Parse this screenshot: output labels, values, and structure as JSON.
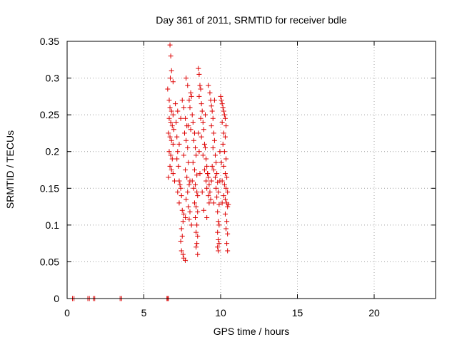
{
  "chart_data": {
    "type": "scatter",
    "title": "Day 361 of 2011, SRMTID for receiver bdle",
    "xlabel": "GPS time / hours",
    "ylabel": "SRMTID / TECUs",
    "xlim": [
      0,
      24
    ],
    "ylim": [
      0,
      0.35
    ],
    "xticks": [
      0,
      5,
      10,
      15,
      20
    ],
    "xtick_labels": [
      "0",
      "5",
      "10",
      "15",
      "20"
    ],
    "yticks": [
      0,
      0.05,
      0.1,
      0.15,
      0.2,
      0.25,
      0.3,
      0.35
    ],
    "ytick_labels": [
      "0",
      "0.05",
      "0.1",
      "0.15",
      "0.2",
      "0.25",
      "0.3",
      "0.35"
    ],
    "grid": true,
    "marker": "plus",
    "color": "#dd0000",
    "series": [
      {
        "name": "SRMTID",
        "points": [
          [
            0.35,
            0
          ],
          [
            0.45,
            0
          ],
          [
            1.35,
            0
          ],
          [
            1.45,
            0
          ],
          [
            1.7,
            0
          ],
          [
            1.8,
            0
          ],
          [
            3.45,
            0
          ],
          [
            3.55,
            0
          ],
          [
            6.5,
            0
          ],
          [
            6.55,
            0
          ],
          [
            6.6,
            0
          ],
          [
            6.7,
            0.345
          ],
          [
            6.75,
            0.33
          ],
          [
            6.8,
            0.31
          ],
          [
            6.72,
            0.3
          ],
          [
            6.9,
            0.295
          ],
          [
            6.65,
            0.27
          ],
          [
            6.7,
            0.26
          ],
          [
            6.8,
            0.255
          ],
          [
            6.9,
            0.25
          ],
          [
            6.65,
            0.245
          ],
          [
            6.75,
            0.24
          ],
          [
            6.85,
            0.235
          ],
          [
            6.95,
            0.23
          ],
          [
            6.6,
            0.225
          ],
          [
            6.7,
            0.22
          ],
          [
            6.8,
            0.215
          ],
          [
            6.9,
            0.21
          ],
          [
            6.65,
            0.2
          ],
          [
            6.75,
            0.195
          ],
          [
            6.85,
            0.19
          ],
          [
            6.7,
            0.18
          ],
          [
            6.8,
            0.175
          ],
          [
            6.9,
            0.17
          ],
          [
            6.6,
            0.165
          ],
          [
            7.0,
            0.16
          ],
          [
            6.55,
            0.285
          ],
          [
            7.1,
            0.24
          ],
          [
            7.15,
            0.22
          ],
          [
            7.2,
            0.2
          ],
          [
            7.25,
            0.18
          ],
          [
            7.3,
            0.16
          ],
          [
            7.35,
            0.155
          ],
          [
            7.4,
            0.15
          ],
          [
            7.2,
            0.145
          ],
          [
            7.45,
            0.14
          ],
          [
            7.3,
            0.13
          ],
          [
            7.5,
            0.12
          ],
          [
            7.6,
            0.115
          ],
          [
            7.55,
            0.105
          ],
          [
            7.45,
            0.095
          ],
          [
            7.5,
            0.085
          ],
          [
            7.4,
            0.078
          ],
          [
            7.45,
            0.065
          ],
          [
            7.55,
            0.06
          ],
          [
            7.6,
            0.055
          ],
          [
            7.7,
            0.052
          ],
          [
            7.5,
            0.27
          ],
          [
            7.6,
            0.26
          ],
          [
            7.7,
            0.245
          ],
          [
            7.8,
            0.235
          ],
          [
            7.65,
            0.225
          ],
          [
            7.75,
            0.215
          ],
          [
            7.85,
            0.205
          ],
          [
            7.6,
            0.195
          ],
          [
            7.9,
            0.185
          ],
          [
            7.7,
            0.175
          ],
          [
            7.8,
            0.165
          ],
          [
            7.95,
            0.155
          ],
          [
            7.85,
            0.145
          ],
          [
            7.75,
            0.135
          ],
          [
            7.9,
            0.125
          ],
          [
            8.0,
            0.118
          ],
          [
            7.95,
            0.108
          ],
          [
            7.75,
            0.3
          ],
          [
            7.85,
            0.29
          ],
          [
            8.05,
            0.28
          ],
          [
            8.1,
            0.275
          ],
          [
            7.95,
            0.27
          ],
          [
            8.0,
            0.26
          ],
          [
            8.15,
            0.25
          ],
          [
            8.2,
            0.24
          ],
          [
            8.05,
            0.23
          ],
          [
            8.3,
            0.225
          ],
          [
            8.25,
            0.215
          ],
          [
            8.35,
            0.205
          ],
          [
            8.4,
            0.195
          ],
          [
            8.2,
            0.185
          ],
          [
            8.3,
            0.175
          ],
          [
            8.45,
            0.168
          ],
          [
            8.15,
            0.16
          ],
          [
            8.35,
            0.155
          ],
          [
            8.25,
            0.15
          ],
          [
            8.45,
            0.145
          ],
          [
            8.5,
            0.14
          ],
          [
            8.3,
            0.13
          ],
          [
            8.4,
            0.125
          ],
          [
            8.5,
            0.118
          ],
          [
            8.35,
            0.11
          ],
          [
            8.45,
            0.1
          ],
          [
            8.4,
            0.09
          ],
          [
            8.5,
            0.085
          ],
          [
            8.45,
            0.075
          ],
          [
            8.4,
            0.07
          ],
          [
            8.5,
            0.06
          ],
          [
            8.55,
            0.313
          ],
          [
            8.6,
            0.305
          ],
          [
            8.65,
            0.29
          ],
          [
            8.7,
            0.285
          ],
          [
            8.6,
            0.275
          ],
          [
            8.75,
            0.265
          ],
          [
            8.8,
            0.255
          ],
          [
            8.7,
            0.245
          ],
          [
            8.85,
            0.24
          ],
          [
            8.9,
            0.23
          ],
          [
            8.75,
            0.22
          ],
          [
            8.95,
            0.21
          ],
          [
            9.0,
            0.205
          ],
          [
            8.85,
            0.195
          ],
          [
            9.05,
            0.19
          ],
          [
            9.1,
            0.18
          ],
          [
            8.95,
            0.175
          ],
          [
            9.15,
            0.17
          ],
          [
            9.2,
            0.165
          ],
          [
            9.05,
            0.16
          ],
          [
            9.25,
            0.155
          ],
          [
            9.1,
            0.15
          ],
          [
            9.3,
            0.145
          ],
          [
            9.2,
            0.14
          ],
          [
            9.35,
            0.135
          ],
          [
            9.25,
            0.13
          ],
          [
            9.15,
            0.17
          ],
          [
            9.4,
            0.16
          ],
          [
            9.3,
            0.28
          ],
          [
            9.35,
            0.27
          ],
          [
            9.4,
            0.262
          ],
          [
            9.45,
            0.255
          ],
          [
            9.5,
            0.245
          ],
          [
            9.4,
            0.235
          ],
          [
            9.55,
            0.225
          ],
          [
            9.6,
            0.215
          ],
          [
            9.5,
            0.205
          ],
          [
            9.65,
            0.195
          ],
          [
            9.7,
            0.185
          ],
          [
            9.55,
            0.175
          ],
          [
            9.75,
            0.17
          ],
          [
            9.65,
            0.165
          ],
          [
            9.8,
            0.158
          ],
          [
            9.7,
            0.15
          ],
          [
            9.85,
            0.145
          ],
          [
            9.75,
            0.138
          ],
          [
            9.9,
            0.128
          ],
          [
            9.8,
            0.118
          ],
          [
            9.85,
            0.105
          ],
          [
            9.9,
            0.1
          ],
          [
            9.8,
            0.09
          ],
          [
            9.85,
            0.08
          ],
          [
            9.9,
            0.075
          ],
          [
            9.8,
            0.07
          ],
          [
            9.85,
            0.065
          ],
          [
            10.0,
            0.275
          ],
          [
            10.05,
            0.27
          ],
          [
            10.1,
            0.265
          ],
          [
            10.15,
            0.26
          ],
          [
            10.2,
            0.255
          ],
          [
            10.25,
            0.25
          ],
          [
            10.3,
            0.245
          ],
          [
            10.1,
            0.24
          ],
          [
            10.35,
            0.235
          ],
          [
            10.2,
            0.225
          ],
          [
            10.3,
            0.22
          ],
          [
            10.15,
            0.21
          ],
          [
            10.25,
            0.2
          ],
          [
            10.35,
            0.19
          ],
          [
            10.05,
            0.185
          ],
          [
            10.2,
            0.18
          ],
          [
            10.3,
            0.17
          ],
          [
            10.4,
            0.165
          ],
          [
            10.1,
            0.16
          ],
          [
            10.25,
            0.155
          ],
          [
            10.35,
            0.15
          ],
          [
            10.45,
            0.145
          ],
          [
            10.2,
            0.14
          ],
          [
            10.3,
            0.135
          ],
          [
            10.4,
            0.13
          ],
          [
            10.45,
            0.125
          ],
          [
            10.3,
            0.115
          ],
          [
            10.4,
            0.105
          ],
          [
            10.35,
            0.095
          ],
          [
            10.45,
            0.088
          ],
          [
            10.4,
            0.075
          ],
          [
            10.45,
            0.065
          ],
          [
            10.5,
            0.128
          ],
          [
            7.05,
            0.265
          ],
          [
            7.2,
            0.255
          ],
          [
            7.4,
            0.245
          ],
          [
            8.6,
            0.2
          ],
          [
            9.0,
            0.25
          ],
          [
            9.2,
            0.29
          ],
          [
            8.9,
            0.12
          ],
          [
            9.1,
            0.11
          ],
          [
            7.3,
            0.21
          ],
          [
            7.7,
            0.11
          ],
          [
            8.1,
            0.1
          ],
          [
            9.55,
            0.13
          ],
          [
            9.95,
            0.16
          ],
          [
            10.1,
            0.13
          ],
          [
            8.8,
            0.145
          ],
          [
            7.9,
            0.235
          ],
          [
            8.55,
            0.225
          ],
          [
            9.6,
            0.27
          ],
          [
            9.95,
            0.2
          ],
          [
            7.15,
            0.19
          ],
          [
            8.0,
            0.16
          ],
          [
            8.65,
            0.17
          ],
          [
            9.45,
            0.18
          ]
        ]
      }
    ]
  }
}
